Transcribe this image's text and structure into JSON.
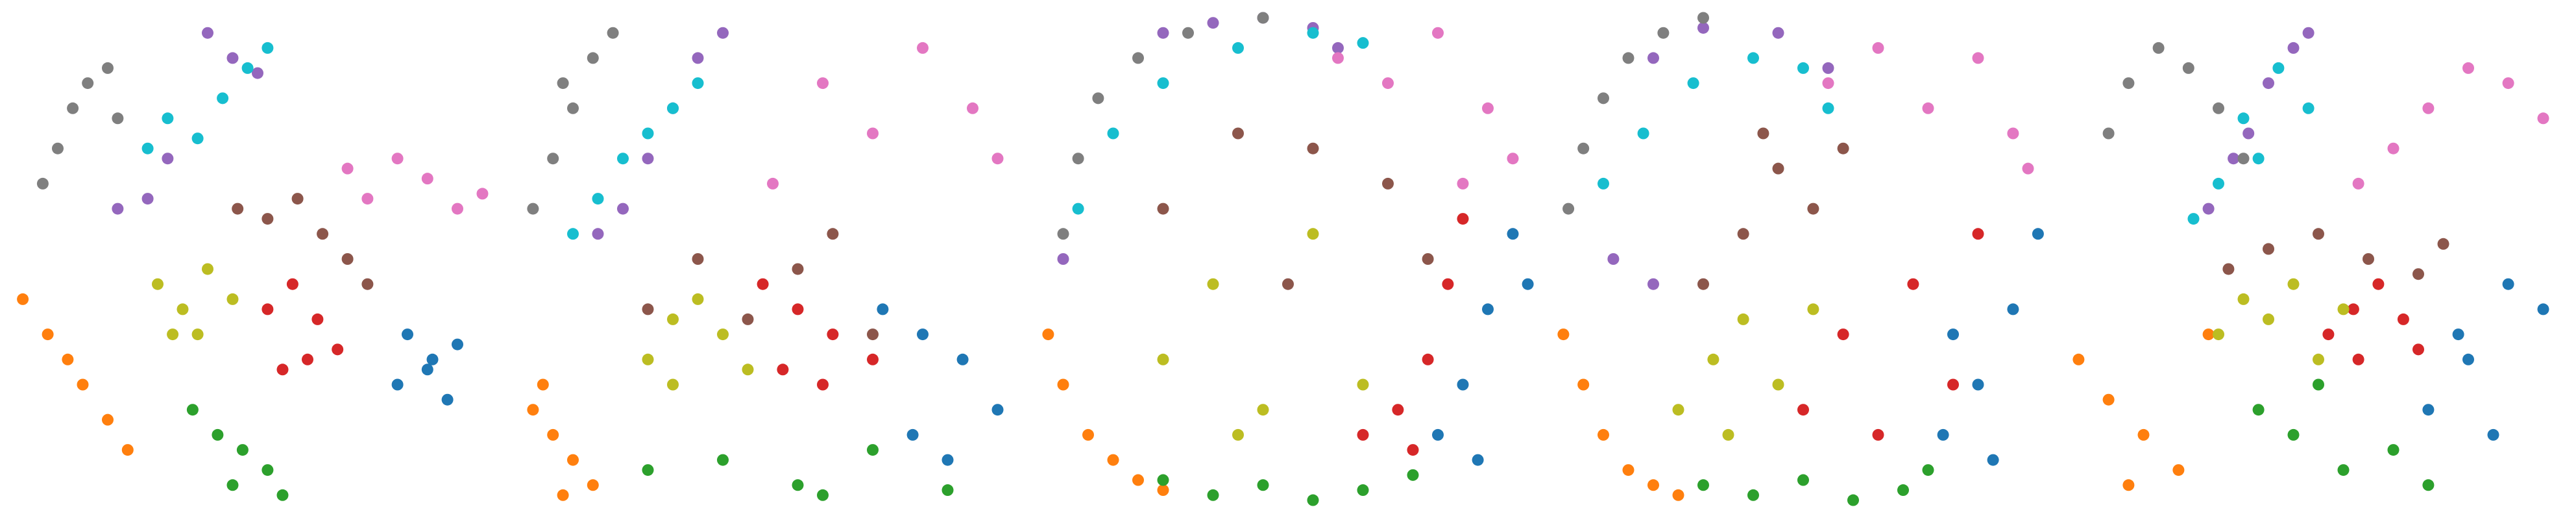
{
  "chart_data": [
    {
      "type": "scatter",
      "xlim": [
        0,
        100
      ],
      "ylim": [
        0,
        100
      ],
      "series": [
        {
          "color": "#1f77b4",
          "x": [
            80,
            85,
            90,
            78,
            88,
            84
          ],
          "values": [
            35,
            30,
            33,
            25,
            22,
            28
          ]
        },
        {
          "color": "#ff7f0e",
          "x": [
            3,
            8,
            12,
            15,
            20,
            24
          ],
          "values": [
            42,
            35,
            30,
            25,
            18,
            12
          ]
        },
        {
          "color": "#2ca02c",
          "x": [
            37,
            42,
            47,
            52,
            45,
            55
          ],
          "values": [
            20,
            15,
            12,
            8,
            5,
            3
          ]
        },
        {
          "color": "#d62728",
          "x": [
            52,
            57,
            62,
            66,
            60,
            55
          ],
          "values": [
            40,
            45,
            38,
            32,
            30,
            28
          ]
        },
        {
          "color": "#9467bd",
          "x": [
            40,
            45,
            50,
            28,
            22,
            32
          ],
          "values": [
            95,
            90,
            87,
            62,
            60,
            70
          ]
        },
        {
          "color": "#8c564b",
          "x": [
            46,
            52,
            58,
            63,
            68,
            72
          ],
          "values": [
            60,
            58,
            62,
            55,
            50,
            45
          ]
        },
        {
          "color": "#e377c2",
          "x": [
            68,
            72,
            78,
            84,
            90,
            95
          ],
          "values": [
            68,
            62,
            70,
            66,
            60,
            63
          ]
        },
        {
          "color": "#7f7f7f",
          "x": [
            7,
            10,
            13,
            16,
            20,
            22
          ],
          "values": [
            65,
            72,
            80,
            85,
            88,
            78
          ]
        },
        {
          "color": "#bcbd22",
          "x": [
            30,
            35,
            40,
            45,
            38,
            33
          ],
          "values": [
            45,
            40,
            48,
            42,
            35,
            35
          ]
        },
        {
          "color": "#17becf",
          "x": [
            28,
            32,
            38,
            43,
            48,
            52
          ],
          "values": [
            72,
            78,
            74,
            82,
            88,
            92
          ]
        }
      ]
    },
    {
      "type": "scatter",
      "xlim": [
        0,
        100
      ],
      "ylim": [
        0,
        100
      ],
      "series": [
        {
          "color": "#1f77b4",
          "x": [
            72,
            80,
            88,
            95,
            85,
            78
          ],
          "values": [
            40,
            35,
            30,
            20,
            10,
            15
          ]
        },
        {
          "color": "#ff7f0e",
          "x": [
            2,
            6,
            10,
            14,
            8,
            4
          ],
          "values": [
            20,
            15,
            10,
            5,
            3,
            25
          ]
        },
        {
          "color": "#2ca02c",
          "x": [
            25,
            40,
            55,
            70,
            85,
            60
          ],
          "values": [
            8,
            10,
            5,
            12,
            4,
            3
          ]
        },
        {
          "color": "#d62728",
          "x": [
            48,
            55,
            62,
            70,
            60,
            52
          ],
          "values": [
            45,
            40,
            35,
            30,
            25,
            28
          ]
        },
        {
          "color": "#9467bd",
          "x": [
            15,
            25,
            35,
            40,
            30,
            20
          ],
          "values": [
            55,
            70,
            90,
            95,
            80,
            60
          ]
        },
        {
          "color": "#8c564b",
          "x": [
            25,
            35,
            45,
            55,
            62,
            70
          ],
          "values": [
            40,
            50,
            38,
            48,
            55,
            35
          ]
        },
        {
          "color": "#e377c2",
          "x": [
            50,
            60,
            70,
            80,
            90,
            95
          ],
          "values": [
            65,
            85,
            75,
            92,
            80,
            70
          ]
        },
        {
          "color": "#7f7f7f",
          "x": [
            2,
            6,
            10,
            14,
            18,
            8
          ],
          "values": [
            60,
            70,
            80,
            90,
            95,
            85
          ]
        },
        {
          "color": "#bcbd22",
          "x": [
            25,
            30,
            35,
            40,
            45,
            30
          ],
          "values": [
            30,
            38,
            42,
            35,
            28,
            25
          ]
        },
        {
          "color": "#17becf",
          "x": [
            10,
            15,
            20,
            25,
            30,
            35
          ],
          "values": [
            55,
            62,
            70,
            75,
            80,
            85
          ]
        }
      ]
    },
    {
      "type": "scatter",
      "xlim": [
        0,
        100
      ],
      "ylim": [
        0,
        100
      ],
      "series": [
        {
          "color": "#1f77b4",
          "x": [
            80,
            85,
            90,
            95,
            98,
            88
          ],
          "values": [
            15,
            25,
            40,
            55,
            45,
            10
          ]
        },
        {
          "color": "#ff7f0e",
          "x": [
            2,
            5,
            10,
            15,
            20,
            25
          ],
          "values": [
            35,
            25,
            15,
            10,
            6,
            4
          ]
        },
        {
          "color": "#2ca02c",
          "x": [
            25,
            35,
            45,
            55,
            65,
            75
          ],
          "values": [
            6,
            3,
            5,
            2,
            4,
            7
          ]
        },
        {
          "color": "#d62728",
          "x": [
            65,
            72,
            78,
            82,
            85,
            75
          ],
          "values": [
            15,
            20,
            30,
            45,
            58,
            12
          ]
        },
        {
          "color": "#9467bd",
          "x": [
            25,
            35,
            45,
            55,
            60,
            5
          ],
          "values": [
            95,
            97,
            98,
            96,
            92,
            50
          ]
        },
        {
          "color": "#8c564b",
          "x": [
            25,
            40,
            55,
            70,
            78,
            50
          ],
          "values": [
            60,
            75,
            72,
            65,
            50,
            45
          ]
        },
        {
          "color": "#e377c2",
          "x": [
            60,
            70,
            80,
            90,
            95,
            85
          ],
          "values": [
            90,
            85,
            95,
            80,
            70,
            65
          ]
        },
        {
          "color": "#7f7f7f",
          "x": [
            5,
            8,
            12,
            20,
            30,
            45
          ],
          "values": [
            55,
            70,
            82,
            90,
            95,
            98
          ]
        },
        {
          "color": "#bcbd22",
          "x": [
            25,
            35,
            45,
            55,
            65,
            40
          ],
          "values": [
            30,
            45,
            20,
            55,
            25,
            15
          ]
        },
        {
          "color": "#17becf",
          "x": [
            8,
            15,
            25,
            40,
            55,
            65
          ],
          "values": [
            60,
            75,
            85,
            92,
            95,
            93
          ]
        }
      ]
    },
    {
      "type": "scatter",
      "xlim": [
        0,
        100
      ],
      "ylim": [
        0,
        100
      ],
      "series": [
        {
          "color": "#1f77b4",
          "x": [
            78,
            85,
            92,
            97,
            88,
            80
          ],
          "values": [
            15,
            25,
            40,
            55,
            10,
            35
          ]
        },
        {
          "color": "#ff7f0e",
          "x": [
            2,
            6,
            10,
            15,
            20,
            25
          ],
          "values": [
            35,
            25,
            15,
            8,
            5,
            3
          ]
        },
        {
          "color": "#2ca02c",
          "x": [
            30,
            40,
            50,
            60,
            70,
            75
          ],
          "values": [
            5,
            3,
            6,
            2,
            4,
            8
          ]
        },
        {
          "color": "#d62728",
          "x": [
            50,
            58,
            65,
            72,
            80,
            85
          ],
          "values": [
            20,
            35,
            15,
            45,
            25,
            55
          ]
        },
        {
          "color": "#9467bd",
          "x": [
            20,
            30,
            45,
            55,
            12,
            20
          ],
          "values": [
            90,
            96,
            95,
            88,
            50,
            45
          ]
        },
        {
          "color": "#8c564b",
          "x": [
            30,
            38,
            45,
            52,
            58,
            42
          ],
          "values": [
            45,
            55,
            68,
            60,
            72,
            75
          ]
        },
        {
          "color": "#e377c2",
          "x": [
            55,
            65,
            75,
            85,
            92,
            95
          ],
          "values": [
            85,
            92,
            80,
            90,
            75,
            68
          ]
        },
        {
          "color": "#7f7f7f",
          "x": [
            3,
            6,
            10,
            15,
            22,
            30
          ],
          "values": [
            60,
            72,
            82,
            90,
            95,
            98
          ]
        },
        {
          "color": "#bcbd22",
          "x": [
            25,
            32,
            38,
            45,
            52,
            35
          ],
          "values": [
            20,
            30,
            38,
            25,
            40,
            15
          ]
        },
        {
          "color": "#17becf",
          "x": [
            10,
            18,
            28,
            40,
            50,
            55
          ],
          "values": [
            65,
            75,
            85,
            90,
            88,
            80
          ]
        }
      ]
    },
    {
      "type": "scatter",
      "xlim": [
        0,
        100
      ],
      "ylim": [
        0,
        100
      ],
      "series": [
        {
          "color": "#1f77b4",
          "x": [
            72,
            80,
            88,
            95,
            85,
            78
          ],
          "values": [
            20,
            30,
            45,
            40,
            15,
            35
          ]
        },
        {
          "color": "#ff7f0e",
          "x": [
            2,
            8,
            15,
            22,
            28,
            12
          ],
          "values": [
            30,
            22,
            15,
            8,
            35,
            5
          ]
        },
        {
          "color": "#2ca02c",
          "x": [
            38,
            45,
            55,
            65,
            72,
            50
          ],
          "values": [
            20,
            15,
            8,
            12,
            5,
            25
          ]
        },
        {
          "color": "#d62728",
          "x": [
            52,
            57,
            62,
            67,
            70,
            58
          ],
          "values": [
            35,
            40,
            45,
            38,
            32,
            30
          ]
        },
        {
          "color": "#9467bd",
          "x": [
            28,
            33,
            40,
            45,
            48,
            36
          ],
          "values": [
            60,
            70,
            85,
            92,
            95,
            75
          ]
        },
        {
          "color": "#8c564b",
          "x": [
            32,
            40,
            50,
            60,
            70,
            75
          ],
          "values": [
            48,
            52,
            55,
            50,
            47,
            53
          ]
        },
        {
          "color": "#e377c2",
          "x": [
            58,
            65,
            72,
            80,
            88,
            95
          ],
          "values": [
            65,
            72,
            80,
            88,
            85,
            78
          ]
        },
        {
          "color": "#7f7f7f",
          "x": [
            8,
            12,
            18,
            24,
            30,
            35
          ],
          "values": [
            75,
            85,
            92,
            88,
            80,
            70
          ]
        },
        {
          "color": "#bcbd22",
          "x": [
            30,
            35,
            40,
            45,
            50,
            55
          ],
          "values": [
            35,
            42,
            38,
            45,
            30,
            40
          ]
        },
        {
          "color": "#17becf",
          "x": [
            25,
            30,
            35,
            42,
            48,
            38
          ],
          "values": [
            58,
            65,
            78,
            88,
            80,
            70
          ]
        }
      ]
    }
  ]
}
